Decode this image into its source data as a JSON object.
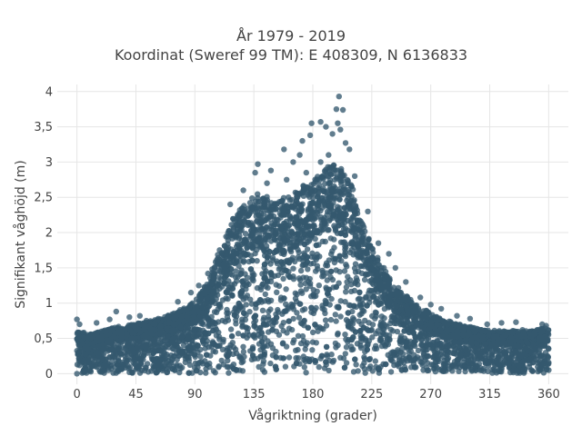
{
  "chart_data": {
    "type": "scatter",
    "title": "År 1979 - 2019",
    "subtitle": "Koordinat (Sweref 99 TM): E 408309, N 6136833",
    "xlabel": "Vågriktning (grader)",
    "ylabel": "Signifikant våghöjd (m)",
    "xlim": [
      -15,
      375
    ],
    "ylim": [
      -0.15,
      4.1
    ],
    "x_ticks": [
      0,
      45,
      90,
      135,
      180,
      225,
      270,
      315,
      360
    ],
    "x_tick_labels": [
      "0",
      "45",
      "90",
      "135",
      "180",
      "225",
      "270",
      "315",
      "360"
    ],
    "y_ticks": [
      0,
      0.5,
      1,
      1.5,
      2,
      2.5,
      3,
      3.5,
      4
    ],
    "y_tick_labels": [
      "0",
      "0,5",
      "1",
      "1,5",
      "2",
      "2,5",
      "3",
      "3,5",
      "4"
    ],
    "grid": true,
    "marker_color": "#34586e",
    "envelope": {
      "direction": [
        0,
        10,
        20,
        30,
        45,
        60,
        75,
        90,
        100,
        110,
        120,
        130,
        135,
        140,
        150,
        160,
        170,
        180,
        185,
        190,
        200,
        210,
        220,
        225,
        230,
        240,
        250,
        260,
        270,
        280,
        290,
        300,
        315,
        330,
        345,
        360
      ],
      "max_height": [
        0.6,
        0.55,
        0.6,
        0.65,
        0.7,
        0.75,
        0.85,
        1.0,
        1.3,
        1.8,
        2.2,
        2.4,
        2.5,
        2.5,
        2.45,
        2.45,
        2.6,
        2.7,
        2.8,
        2.9,
        2.9,
        2.6,
        2.0,
        1.8,
        1.6,
        1.3,
        1.1,
        0.95,
        0.85,
        0.75,
        0.7,
        0.65,
        0.6,
        0.6,
        0.6,
        0.65
      ]
    },
    "outliers": [
      {
        "x": 200,
        "y": 3.93
      },
      {
        "x": 198,
        "y": 3.75
      },
      {
        "x": 203,
        "y": 3.74
      },
      {
        "x": 186,
        "y": 3.57
      },
      {
        "x": 190,
        "y": 3.5
      },
      {
        "x": 199,
        "y": 3.55
      },
      {
        "x": 201,
        "y": 3.46
      },
      {
        "x": 179,
        "y": 3.55
      },
      {
        "x": 172,
        "y": 3.3
      },
      {
        "x": 195,
        "y": 3.4
      },
      {
        "x": 205,
        "y": 3.27
      },
      {
        "x": 208,
        "y": 3.18
      },
      {
        "x": 158,
        "y": 3.18
      },
      {
        "x": 170,
        "y": 3.1
      },
      {
        "x": 178,
        "y": 3.38
      },
      {
        "x": 138,
        "y": 2.97
      },
      {
        "x": 148,
        "y": 2.88
      },
      {
        "x": 165,
        "y": 3.0
      },
      {
        "x": 186,
        "y": 3.0
      },
      {
        "x": 192,
        "y": 3.1
      },
      {
        "x": 175,
        "y": 2.85
      },
      {
        "x": 160,
        "y": 2.75
      },
      {
        "x": 136,
        "y": 2.85
      },
      {
        "x": 145,
        "y": 2.7
      },
      {
        "x": 212,
        "y": 2.8
      },
      {
        "x": 127,
        "y": 2.6
      },
      {
        "x": 117,
        "y": 2.4
      },
      {
        "x": 222,
        "y": 2.3
      },
      {
        "x": 230,
        "y": 1.85
      },
      {
        "x": 238,
        "y": 1.7
      },
      {
        "x": 243,
        "y": 1.5
      },
      {
        "x": 100,
        "y": 1.42
      },
      {
        "x": 93,
        "y": 1.25
      },
      {
        "x": 87,
        "y": 1.15
      },
      {
        "x": 77,
        "y": 1.02
      },
      {
        "x": 251,
        "y": 1.3
      },
      {
        "x": 262,
        "y": 1.08
      },
      {
        "x": 270,
        "y": 0.98
      },
      {
        "x": 278,
        "y": 0.92
      },
      {
        "x": 290,
        "y": 0.82
      },
      {
        "x": 300,
        "y": 0.78
      },
      {
        "x": 313,
        "y": 0.7
      },
      {
        "x": 324,
        "y": 0.72
      },
      {
        "x": 335,
        "y": 0.73
      },
      {
        "x": 340,
        "y": 0.62
      },
      {
        "x": 355,
        "y": 0.7
      },
      {
        "x": 358,
        "y": 0.68
      },
      {
        "x": 30,
        "y": 0.88
      },
      {
        "x": 40,
        "y": 0.8
      },
      {
        "x": 48,
        "y": 0.82
      },
      {
        "x": 53,
        "y": 0.75
      },
      {
        "x": 62,
        "y": 0.78
      },
      {
        "x": 25,
        "y": 0.77
      },
      {
        "x": 0,
        "y": 0.77
      },
      {
        "x": 2,
        "y": 0.7
      },
      {
        "x": 15,
        "y": 0.72
      },
      {
        "x": 40,
        "y": 0.02
      },
      {
        "x": 0,
        "y": 0.0
      },
      {
        "x": 360,
        "y": 0.05
      }
    ]
  }
}
